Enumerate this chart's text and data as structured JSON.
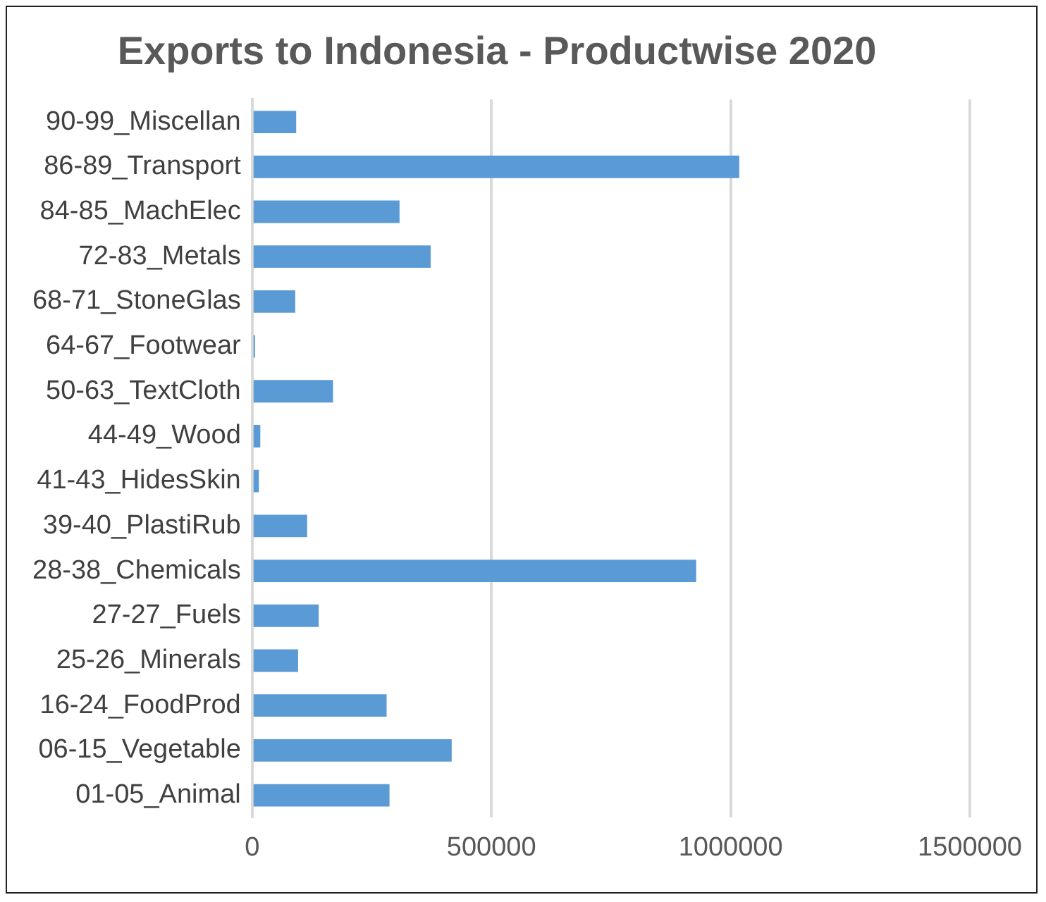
{
  "chart_data": {
    "type": "bar",
    "orientation": "horizontal",
    "title": "Exports to Indonesia - Productwise 2020",
    "categories": [
      "90-99_Miscellan",
      "86-89_Transport",
      "84-85_MachElec",
      "72-83_Metals",
      "68-71_StoneGlas",
      "64-67_Footwear",
      "50-63_TextCloth",
      "44-49_Wood",
      "41-43_HidesSkin",
      "39-40_PlastiRub",
      "28-38_Chemicals",
      "27-27_Fuels",
      "25-26_Minerals",
      "16-24_FoodProd",
      "06-15_Vegetable",
      "01-05_Animal"
    ],
    "values": [
      92000,
      1018000,
      308000,
      373000,
      90000,
      6000,
      169000,
      17000,
      14000,
      115000,
      928000,
      139000,
      96000,
      281000,
      417000,
      287000
    ],
    "color": "#5b9bd5",
    "xlim": [
      0,
      1500000
    ],
    "xticks": [
      0,
      500000,
      1000000,
      1500000
    ],
    "grid": "x",
    "legend": false
  }
}
